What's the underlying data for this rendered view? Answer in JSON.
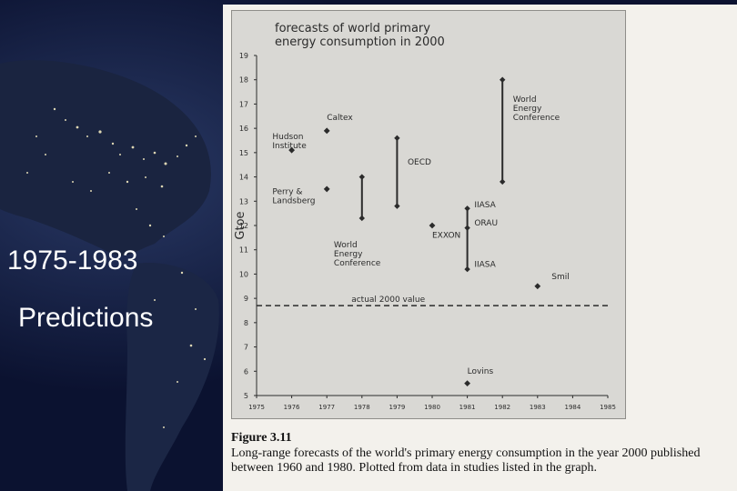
{
  "slide": {
    "label_years": "1975-1983",
    "label_predictions": "Predictions"
  },
  "caption": {
    "figure": "Figure 3.11",
    "text": "Long-range forecasts of the world's primary energy consumption in the year 2000 published between 1960 and 1980. Plotted from data in studies listed in the graph."
  },
  "colors": {
    "background": "#0b1230",
    "page": "#f3f1ec",
    "panel": "#d9d8d4",
    "ink": "#2b2b2b",
    "label_text": "#ffffff"
  },
  "chart_data": {
    "type": "scatter",
    "title": "forecasts of world primary energy consumption in 2000",
    "ylabel": "Gtoe",
    "xlabel": "",
    "xlim": [
      1975,
      1985
    ],
    "ylim": [
      5,
      19
    ],
    "x_ticks": [
      "1975",
      "1976",
      "1977",
      "1978",
      "1979",
      "1980",
      "1981",
      "1982",
      "1983",
      "1984",
      "1985"
    ],
    "y_ticks": [
      "5",
      "6",
      "7",
      "8",
      "9",
      "10",
      "11",
      "12",
      "13",
      "14",
      "15",
      "16",
      "17",
      "18",
      "19"
    ],
    "points": [
      {
        "x": 1976,
        "y": 15.1
      },
      {
        "x": 1977,
        "y": 15.9
      },
      {
        "x": 1977,
        "y": 13.5
      },
      {
        "x": 1980,
        "y": 12.0
      },
      {
        "x": 1983,
        "y": 9.5
      },
      {
        "x": 1981,
        "y": 5.5
      }
    ],
    "ranges": [
      {
        "x": 1978,
        "low": 12.3,
        "high": 14.0
      },
      {
        "x": 1979,
        "low": 12.8,
        "high": 15.6
      },
      {
        "x": 1981,
        "low": 10.2,
        "high": 12.7
      },
      {
        "x": 1982,
        "low": 13.8,
        "high": 18.0
      }
    ],
    "range_markers": [
      {
        "x": 1981,
        "y": 11.9
      }
    ],
    "reference_line": {
      "y": 8.7,
      "label": "actual 2000 value",
      "style": "dashed"
    },
    "annotations": [
      {
        "text": "Hudson Institute",
        "x": 1975.45,
        "y": 15.55
      },
      {
        "text": "Caltex",
        "x": 1977.0,
        "y": 16.35
      },
      {
        "text": "Perry & Landsberg",
        "x": 1975.45,
        "y": 13.3
      },
      {
        "text": "World Energy Conference",
        "x": 1977.2,
        "y": 11.1
      },
      {
        "text": "OECD",
        "x": 1979.3,
        "y": 14.5
      },
      {
        "text": "EXXON",
        "x": 1980.0,
        "y": 11.5
      },
      {
        "text": "IIASA",
        "x": 1981.2,
        "y": 12.75
      },
      {
        "text": "ORAU",
        "x": 1981.2,
        "y": 12.0
      },
      {
        "text": "IIASA",
        "x": 1981.2,
        "y": 10.3
      },
      {
        "text": "World Energy Conference",
        "x": 1982.3,
        "y": 17.1
      },
      {
        "text": "Smil",
        "x": 1983.4,
        "y": 9.8
      },
      {
        "text": "Lovins",
        "x": 1981.0,
        "y": 5.9
      }
    ],
    "grid": false,
    "legend": "none"
  }
}
